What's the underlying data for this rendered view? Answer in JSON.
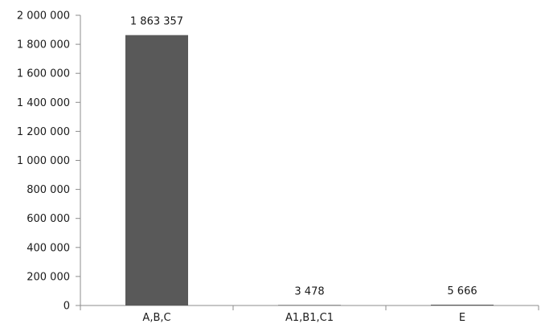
{
  "chart_data": {
    "type": "bar",
    "title": "",
    "xlabel": "",
    "ylabel": "",
    "categories": [
      "A,B,C",
      "A1,B1,C1",
      "E"
    ],
    "values": [
      1863357,
      3478,
      5666
    ],
    "data_labels": [
      "1 863 357",
      "3 478",
      "5 666"
    ],
    "ylim": [
      0,
      2000000
    ],
    "yticks": [
      0,
      200000,
      400000,
      600000,
      800000,
      1000000,
      1200000,
      1400000,
      1600000,
      1800000,
      2000000
    ],
    "ytick_labels": [
      "0",
      "200 000",
      "400 000",
      "600 000",
      "800 000",
      "1 000 000",
      "1 200 000",
      "1 400 000",
      "1 600 000",
      "1 800 000",
      "2 000 000"
    ],
    "grid": false,
    "legend": "none",
    "bar_color": "#595959"
  }
}
